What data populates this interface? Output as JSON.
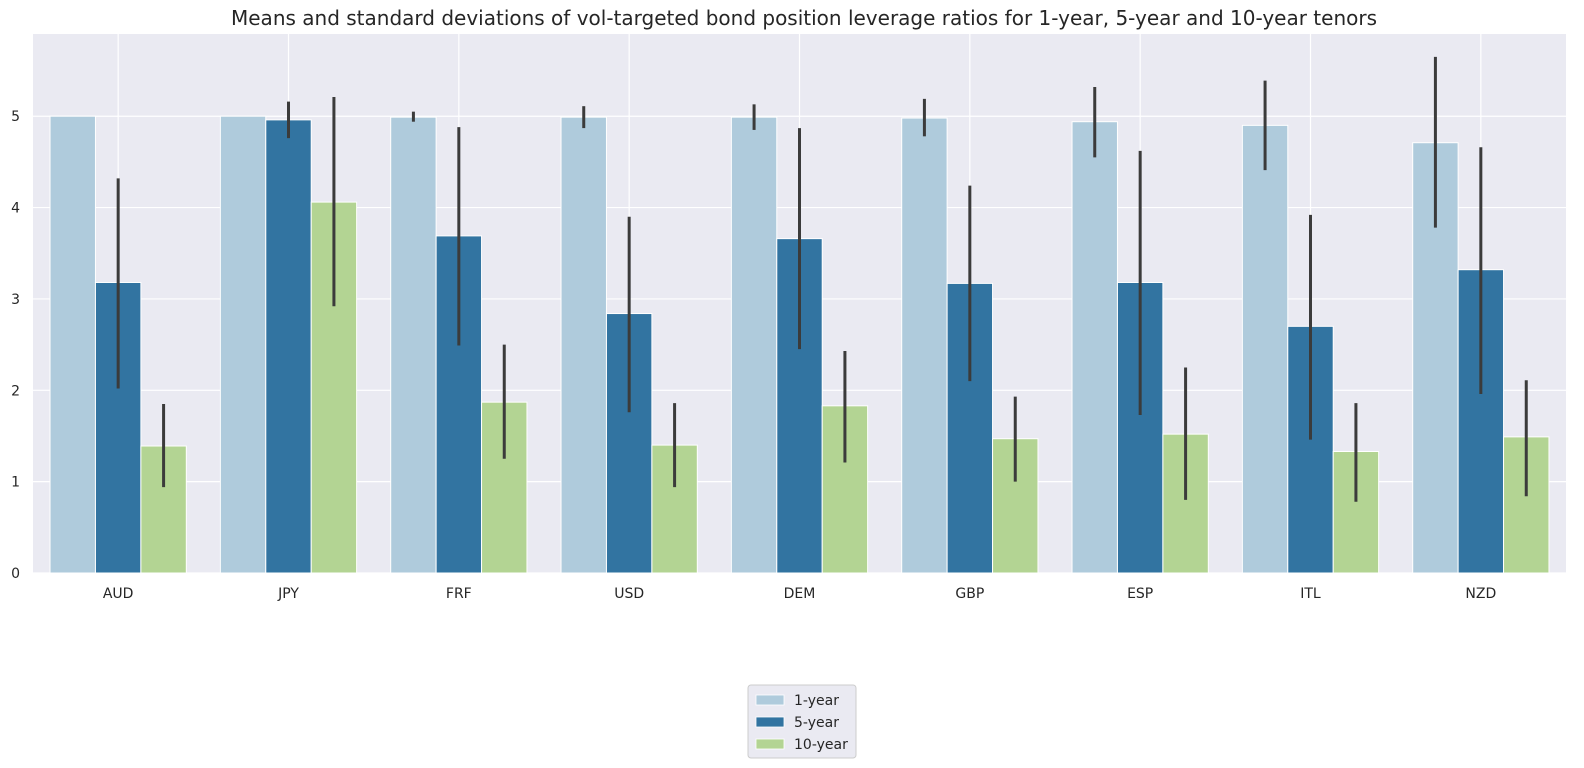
{
  "chart_data": {
    "type": "bar",
    "title": "Means and standard deviations of vol-targeted bond position leverage ratios for 1-year, 5-year and 10-year tenors",
    "xlabel": "",
    "ylabel": "",
    "ylim": [
      0,
      5.9
    ],
    "yticks": [
      0,
      1,
      2,
      3,
      4,
      5
    ],
    "grid": true,
    "legend_position": "bottom-center",
    "categories": [
      "AUD",
      "JPY",
      "FRF",
      "USD",
      "DEM",
      "GBP",
      "ESP",
      "ITL",
      "NZD"
    ],
    "series": [
      {
        "name": "1-year",
        "color": "#afcbdc",
        "values": [
          5.0,
          5.0,
          4.99,
          4.99,
          4.99,
          4.98,
          4.94,
          4.9,
          4.71
        ],
        "error_low": [
          5.0,
          5.0,
          4.94,
          4.87,
          4.85,
          4.78,
          4.55,
          4.41,
          3.78
        ],
        "error_high": [
          5.0,
          5.0,
          5.05,
          5.11,
          5.13,
          5.19,
          5.32,
          5.39,
          5.65
        ]
      },
      {
        "name": "5-year",
        "color": "#3274a1",
        "values": [
          3.18,
          4.96,
          3.69,
          2.84,
          3.66,
          3.17,
          3.18,
          2.7,
          3.32
        ],
        "error_low": [
          2.02,
          4.76,
          2.49,
          1.76,
          2.45,
          2.1,
          1.73,
          1.46,
          1.96
        ],
        "error_high": [
          4.32,
          5.16,
          4.88,
          3.9,
          4.87,
          4.24,
          4.62,
          3.92,
          4.66
        ]
      },
      {
        "name": "10-year",
        "color": "#b3d493",
        "values": [
          1.39,
          4.06,
          1.87,
          1.4,
          1.83,
          1.47,
          1.52,
          1.33,
          1.49
        ],
        "error_low": [
          0.94,
          2.92,
          1.25,
          0.94,
          1.21,
          1.0,
          0.8,
          0.78,
          0.84
        ],
        "error_high": [
          1.85,
          5.21,
          2.5,
          1.86,
          2.43,
          1.93,
          2.25,
          1.86,
          2.11
        ]
      }
    ]
  },
  "colors": {
    "plot_background": "#eaeaf2",
    "grid_line": "#ffffff",
    "error_bar": "#3b3b3b",
    "text": "#262626",
    "legend_border": "#cccccc"
  }
}
